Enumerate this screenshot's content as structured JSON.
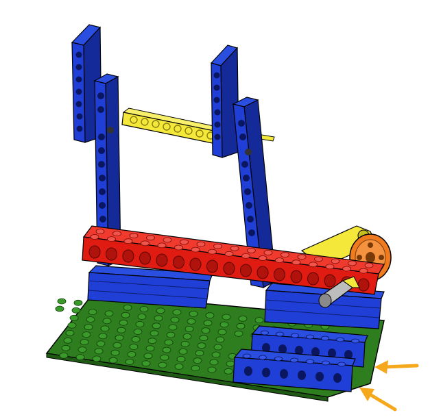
{
  "model": {
    "baseplate_color": "#2e7d1f",
    "baseplate_dark": "#1f5a14",
    "blue": "#1f3fd6",
    "blue_dark": "#142a99",
    "red": "#e01b12",
    "red_dark": "#a50f09",
    "yellow": "#f4e93a",
    "yellow_dark": "#c8bd1e",
    "orange": "#f07a1e",
    "grey": "#8a8a8a",
    "arrow_color": "#f5a81c"
  },
  "parts": {
    "left_upright": "blue-technic-beam-icon",
    "right_upright": "blue-technic-beam-icon",
    "crossbar": "yellow-liftarm-icon",
    "long_brick": "red-technic-brick-icon",
    "pulley": "orange-pulley-wheel-icon",
    "axle": "grey-axle-icon",
    "arrows": "orange-arrow-icon"
  }
}
